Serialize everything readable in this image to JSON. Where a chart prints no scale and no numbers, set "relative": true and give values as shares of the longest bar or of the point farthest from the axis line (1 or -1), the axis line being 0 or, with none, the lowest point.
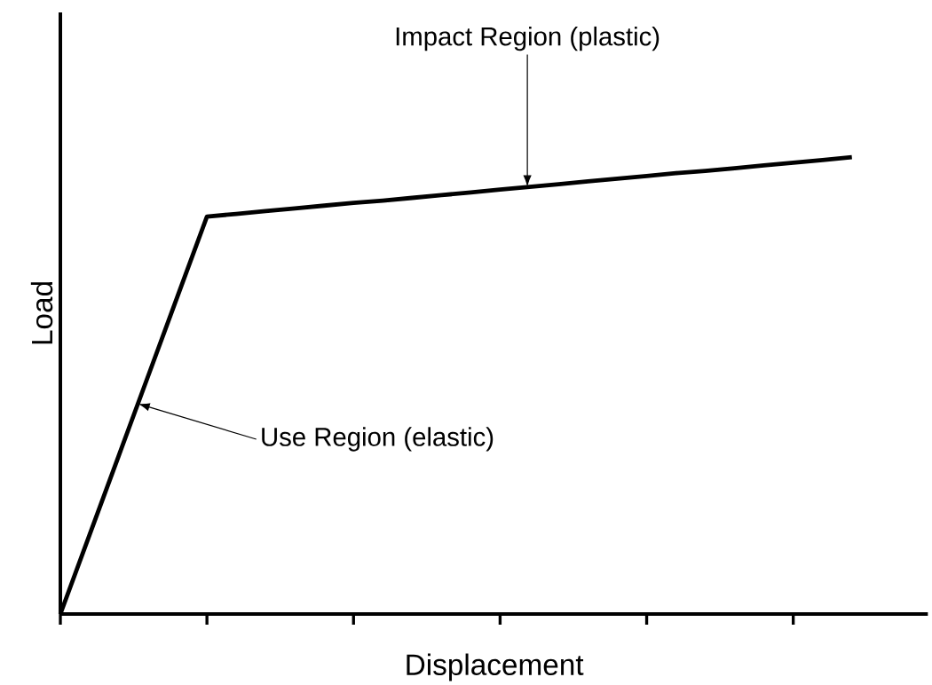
{
  "chart_data": {
    "type": "line",
    "xlabel": "Displacement",
    "ylabel": "Load",
    "relative": true,
    "categories": [
      null,
      null,
      null,
      null,
      null,
      null,
      null,
      null,
      null,
      null,
      null,
      null,
      null,
      null,
      null,
      null,
      null,
      null,
      null,
      null,
      null,
      null,
      null,
      null,
      null,
      null,
      null,
      null
    ],
    "values": [
      0,
      0.174,
      0.348,
      0.522,
      0.696,
      0.87,
      0.876,
      0.882,
      0.888,
      0.894,
      0.9,
      0.905,
      0.911,
      0.917,
      0.923,
      0.929,
      0.935,
      0.941,
      0.947,
      0.953,
      0.959,
      0.965,
      0.97,
      0.976,
      0.982,
      0.988,
      0.994,
      1
    ],
    "color": "#000000",
    "annotations": [
      "Impact Region (plastic)",
      "Use Region (elastic)"
    ]
  }
}
